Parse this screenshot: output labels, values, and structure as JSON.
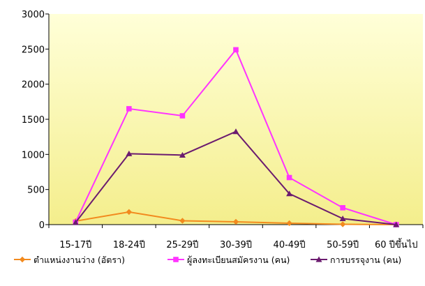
{
  "chart_data": {
    "type": "line",
    "categories": [
      "15-17ปี",
      "18-24ปี",
      "25-29ปี",
      "30-39ปี",
      "40-49ปี",
      "50-59ปี",
      "60 ปีขึ้นไป"
    ],
    "ylim": [
      0,
      3000
    ],
    "yticks": [
      0,
      500,
      1000,
      1500,
      2000,
      2500,
      3000
    ],
    "grid": false,
    "legend_position": "bottom",
    "plot_background": [
      "#ffffd8",
      "#f4ee8c"
    ],
    "series": [
      {
        "name": "ตำแหน่งงานว่าง (อัตรา)",
        "color": "#f28a1e",
        "marker": "diamond",
        "values": [
          50,
          180,
          55,
          40,
          20,
          5,
          0
        ]
      },
      {
        "name": "ผู้ลงทะเบียนสมัครงาน (คน)",
        "color": "#ff33ff",
        "marker": "square",
        "values": [
          35,
          1650,
          1550,
          2490,
          670,
          240,
          0
        ]
      },
      {
        "name": "การบรรจุงาน (คน)",
        "color": "#6b1b6f",
        "marker": "triangle",
        "values": [
          30,
          1010,
          990,
          1325,
          440,
          85,
          0
        ]
      }
    ]
  }
}
